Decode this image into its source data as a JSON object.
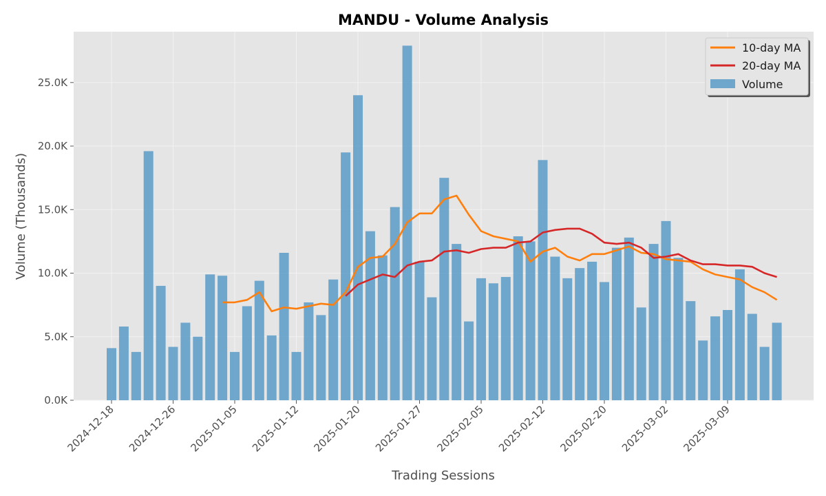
{
  "chart_data": {
    "type": "bar",
    "title": "MANDU - Volume Analysis",
    "xlabel": "Trading Sessions",
    "ylabel": "Volume (Thousands)",
    "ylim": [
      0,
      29000
    ],
    "y_ticks": [
      0,
      5000,
      10000,
      15000,
      20000,
      25000
    ],
    "y_tick_labels": [
      "0.0K",
      "5.0K",
      "10.0K",
      "15.0K",
      "20.0K",
      "25.0K"
    ],
    "x_tick_labels": [
      "2024-12-18",
      "2024-12-26",
      "2025-01-05",
      "2025-01-12",
      "2025-01-20",
      "2025-01-27",
      "2025-02-05",
      "2025-02-12",
      "2025-02-20",
      "2025-03-02",
      "2025-03-09"
    ],
    "x_tick_positions": [
      0.5,
      5.5,
      10.5,
      15.5,
      20.5,
      25.5,
      30.5,
      35.5,
      40.5,
      45.5,
      50.5
    ],
    "grid": true,
    "legend_placement": "top-right",
    "colors": {
      "volume": "#5b9bc8",
      "ma10": "#ff7f0e",
      "ma20": "#d62728",
      "plot_bg": "#e5e5e5",
      "grid": "#f2f2f2"
    },
    "series": [
      {
        "name": "Volume",
        "kind": "bar",
        "values": [
          4100,
          5800,
          3800,
          19600,
          9000,
          4200,
          6100,
          5000,
          9900,
          9800,
          3800,
          7400,
          9400,
          5100,
          11600,
          3800,
          7700,
          6700,
          9500,
          19500,
          24000,
          13300,
          11400,
          15200,
          27900,
          10900,
          8100,
          17500,
          12300,
          6200,
          9600,
          9200,
          9700,
          12900,
          12500,
          18900,
          11300,
          9600,
          10400,
          10900,
          9300,
          12000,
          12800,
          7300,
          12300,
          14100,
          11200,
          7800,
          4700,
          6600,
          7100,
          10300,
          6800,
          4200,
          6100
        ]
      },
      {
        "name": "10-day MA",
        "kind": "line",
        "values": [
          null,
          null,
          null,
          null,
          null,
          null,
          null,
          null,
          null,
          7700,
          7700,
          7900,
          8500,
          7000,
          7300,
          7200,
          7400,
          7600,
          7500,
          8500,
          10500,
          11200,
          11300,
          12300,
          14000,
          14700,
          14700,
          15800,
          16100,
          14600,
          13300,
          12900,
          12700,
          12500,
          10900,
          11700,
          12000,
          11300,
          11000,
          11500,
          11500,
          11800,
          12100,
          11600,
          11500,
          11100,
          11000,
          10900,
          10300,
          9900,
          9700,
          9500,
          8900,
          8500,
          7900
        ]
      },
      {
        "name": "20-day MA",
        "kind": "line",
        "values": [
          null,
          null,
          null,
          null,
          null,
          null,
          null,
          null,
          null,
          null,
          null,
          null,
          null,
          null,
          null,
          null,
          null,
          null,
          null,
          8200,
          9100,
          9500,
          9900,
          9700,
          10600,
          10900,
          11000,
          11700,
          11800,
          11600,
          11900,
          12000,
          12000,
          12400,
          12500,
          13200,
          13400,
          13500,
          13500,
          13100,
          12400,
          12300,
          12400,
          12000,
          11200,
          11300,
          11500,
          11000,
          10700,
          10700,
          10600,
          10600,
          10500,
          10000,
          9700
        ]
      }
    ]
  }
}
